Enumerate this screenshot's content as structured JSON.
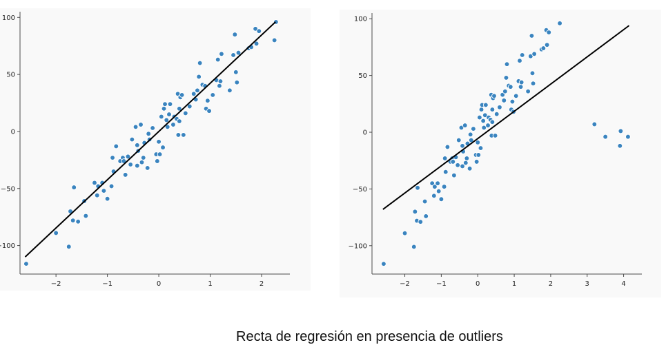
{
  "caption": "Recta de regresión en presencia de outliers",
  "colors": {
    "points": "#3a84bf",
    "line": "#000000",
    "panel": "#f9f9f9"
  },
  "chart_data": [
    {
      "type": "scatter",
      "title": "",
      "xlabel": "",
      "ylabel": "",
      "xlim": [
        -2.7,
        2.55
      ],
      "ylim": [
        -125,
        105
      ],
      "xticks": [
        -2,
        -1,
        0,
        1,
        2
      ],
      "xtick_labels": [
        "−2",
        "−1",
        "0",
        "1",
        "2"
      ],
      "yticks": [
        -100,
        -50,
        0,
        50,
        100
      ],
      "ytick_labels": [
        "−100",
        "−50",
        "0",
        "50",
        "100"
      ],
      "grid": false,
      "regression_line": {
        "x": [
          -2.6,
          2.27
        ],
        "y": [
          -110,
          96
        ]
      },
      "series": [
        {
          "points": [
            [
              -2.58,
              -116
            ],
            [
              -2.0,
              -89
            ],
            [
              -1.75,
              -101
            ],
            [
              -1.72,
              -70
            ],
            [
              -1.67,
              -78
            ],
            [
              -1.65,
              -49
            ],
            [
              -1.57,
              -79
            ],
            [
              -1.45,
              -61
            ],
            [
              -1.42,
              -74
            ],
            [
              -1.25,
              -45
            ],
            [
              -1.2,
              -56
            ],
            [
              -1.18,
              -48
            ],
            [
              -1.1,
              -45
            ],
            [
              -1.07,
              -52
            ],
            [
              -1.0,
              -59
            ],
            [
              -0.92,
              -48
            ],
            [
              -0.9,
              -23
            ],
            [
              -0.88,
              -35
            ],
            [
              -0.83,
              -13
            ],
            [
              -0.75,
              -26
            ],
            [
              -0.7,
              -23
            ],
            [
              -0.68,
              -26
            ],
            [
              -0.65,
              -38
            ],
            [
              -0.6,
              -22
            ],
            [
              -0.55,
              -29
            ],
            [
              -0.52,
              -7
            ],
            [
              -0.45,
              4
            ],
            [
              -0.42,
              -12
            ],
            [
              -0.42,
              -30
            ],
            [
              -0.4,
              -17
            ],
            [
              -0.35,
              6
            ],
            [
              -0.33,
              -27
            ],
            [
              -0.3,
              -23
            ],
            [
              -0.28,
              -10
            ],
            [
              -0.22,
              -32
            ],
            [
              -0.2,
              -2
            ],
            [
              -0.18,
              -7
            ],
            [
              -0.12,
              3
            ],
            [
              -0.05,
              -20
            ],
            [
              -0.03,
              -26
            ],
            [
              0.0,
              -9
            ],
            [
              0.02,
              -20
            ],
            [
              0.05,
              13
            ],
            [
              0.08,
              -14
            ],
            [
              0.1,
              20
            ],
            [
              0.12,
              24
            ],
            [
              0.15,
              10
            ],
            [
              0.17,
              4
            ],
            [
              0.2,
              15
            ],
            [
              0.22,
              24
            ],
            [
              0.28,
              6
            ],
            [
              0.3,
              13
            ],
            [
              0.35,
              11
            ],
            [
              0.37,
              33
            ],
            [
              0.38,
              -3
            ],
            [
              0.4,
              20
            ],
            [
              0.4,
              9
            ],
            [
              0.42,
              30
            ],
            [
              0.45,
              32
            ],
            [
              0.48,
              -3
            ],
            [
              0.52,
              16
            ],
            [
              0.6,
              22
            ],
            [
              0.68,
              33
            ],
            [
              0.72,
              28
            ],
            [
              0.75,
              36
            ],
            [
              0.78,
              48
            ],
            [
              0.8,
              60
            ],
            [
              0.85,
              41
            ],
            [
              0.9,
              40
            ],
            [
              0.92,
              20
            ],
            [
              0.95,
              27
            ],
            [
              0.98,
              18
            ],
            [
              1.05,
              32
            ],
            [
              1.12,
              45
            ],
            [
              1.15,
              63
            ],
            [
              1.18,
              40
            ],
            [
              1.2,
              44
            ],
            [
              1.22,
              68
            ],
            [
              1.38,
              36
            ],
            [
              1.45,
              67
            ],
            [
              1.48,
              85
            ],
            [
              1.5,
              52
            ],
            [
              1.52,
              43
            ],
            [
              1.55,
              69
            ],
            [
              1.75,
              73
            ],
            [
              1.8,
              74
            ],
            [
              1.88,
              90
            ],
            [
              1.9,
              77
            ],
            [
              1.95,
              88
            ],
            [
              2.25,
              80
            ],
            [
              2.28,
              96
            ]
          ]
        }
      ]
    },
    {
      "type": "scatter",
      "title": "",
      "xlabel": "",
      "ylabel": "",
      "xlim": [
        -2.9,
        4.5
      ],
      "ylim": [
        -125,
        105
      ],
      "xticks": [
        -2,
        -1,
        0,
        1,
        2,
        3,
        4
      ],
      "xtick_labels": [
        "−2",
        "−1",
        "0",
        "1",
        "2",
        "3",
        "4"
      ],
      "yticks": [
        -100,
        -50,
        0,
        50,
        100
      ],
      "ytick_labels": [
        "−100",
        "−50",
        "0",
        "50",
        "100"
      ],
      "grid": false,
      "regression_line": {
        "x": [
          -2.6,
          4.15
        ],
        "y": [
          -68,
          94
        ]
      },
      "series": [
        {
          "points": [
            [
              -2.58,
              -116
            ],
            [
              -2.0,
              -89
            ],
            [
              -1.75,
              -101
            ],
            [
              -1.72,
              -70
            ],
            [
              -1.67,
              -78
            ],
            [
              -1.65,
              -49
            ],
            [
              -1.57,
              -79
            ],
            [
              -1.45,
              -61
            ],
            [
              -1.42,
              -74
            ],
            [
              -1.25,
              -45
            ],
            [
              -1.2,
              -56
            ],
            [
              -1.18,
              -48
            ],
            [
              -1.1,
              -45
            ],
            [
              -1.07,
              -52
            ],
            [
              -1.0,
              -59
            ],
            [
              -0.92,
              -48
            ],
            [
              -0.9,
              -23
            ],
            [
              -0.88,
              -35
            ],
            [
              -0.83,
              -13
            ],
            [
              -0.75,
              -26
            ],
            [
              -0.7,
              -23
            ],
            [
              -0.68,
              -26
            ],
            [
              -0.65,
              -38
            ],
            [
              -0.6,
              -22
            ],
            [
              -0.55,
              -29
            ],
            [
              -0.52,
              -7
            ],
            [
              -0.45,
              4
            ],
            [
              -0.42,
              -12
            ],
            [
              -0.42,
              -30
            ],
            [
              -0.4,
              -17
            ],
            [
              -0.35,
              6
            ],
            [
              -0.33,
              -27
            ],
            [
              -0.3,
              -23
            ],
            [
              -0.28,
              -10
            ],
            [
              -0.22,
              -32
            ],
            [
              -0.2,
              -2
            ],
            [
              -0.18,
              -7
            ],
            [
              -0.12,
              3
            ],
            [
              -0.05,
              -20
            ],
            [
              -0.03,
              -26
            ],
            [
              0.0,
              -9
            ],
            [
              0.02,
              -20
            ],
            [
              0.05,
              13
            ],
            [
              0.08,
              -14
            ],
            [
              0.1,
              20
            ],
            [
              0.12,
              24
            ],
            [
              0.15,
              10
            ],
            [
              0.17,
              4
            ],
            [
              0.2,
              15
            ],
            [
              0.22,
              24
            ],
            [
              0.28,
              6
            ],
            [
              0.3,
              13
            ],
            [
              0.35,
              11
            ],
            [
              0.37,
              33
            ],
            [
              0.38,
              -3
            ],
            [
              0.4,
              20
            ],
            [
              0.4,
              9
            ],
            [
              0.42,
              30
            ],
            [
              0.45,
              32
            ],
            [
              0.48,
              -3
            ],
            [
              0.52,
              16
            ],
            [
              0.6,
              22
            ],
            [
              0.68,
              33
            ],
            [
              0.72,
              28
            ],
            [
              0.75,
              36
            ],
            [
              0.78,
              48
            ],
            [
              0.8,
              60
            ],
            [
              0.85,
              41
            ],
            [
              0.9,
              40
            ],
            [
              0.92,
              20
            ],
            [
              0.95,
              27
            ],
            [
              0.98,
              18
            ],
            [
              1.05,
              32
            ],
            [
              1.12,
              45
            ],
            [
              1.15,
              63
            ],
            [
              1.18,
              40
            ],
            [
              1.2,
              44
            ],
            [
              1.22,
              68
            ],
            [
              1.38,
              36
            ],
            [
              1.45,
              67
            ],
            [
              1.48,
              85
            ],
            [
              1.5,
              52
            ],
            [
              1.52,
              43
            ],
            [
              1.55,
              69
            ],
            [
              1.75,
              73
            ],
            [
              1.8,
              74
            ],
            [
              1.88,
              90
            ],
            [
              1.9,
              77
            ],
            [
              1.95,
              88
            ],
            [
              2.25,
              96
            ],
            [
              3.2,
              7
            ],
            [
              3.5,
              -4
            ],
            [
              3.9,
              -12
            ],
            [
              3.92,
              1
            ],
            [
              4.12,
              -4
            ]
          ]
        }
      ]
    }
  ]
}
